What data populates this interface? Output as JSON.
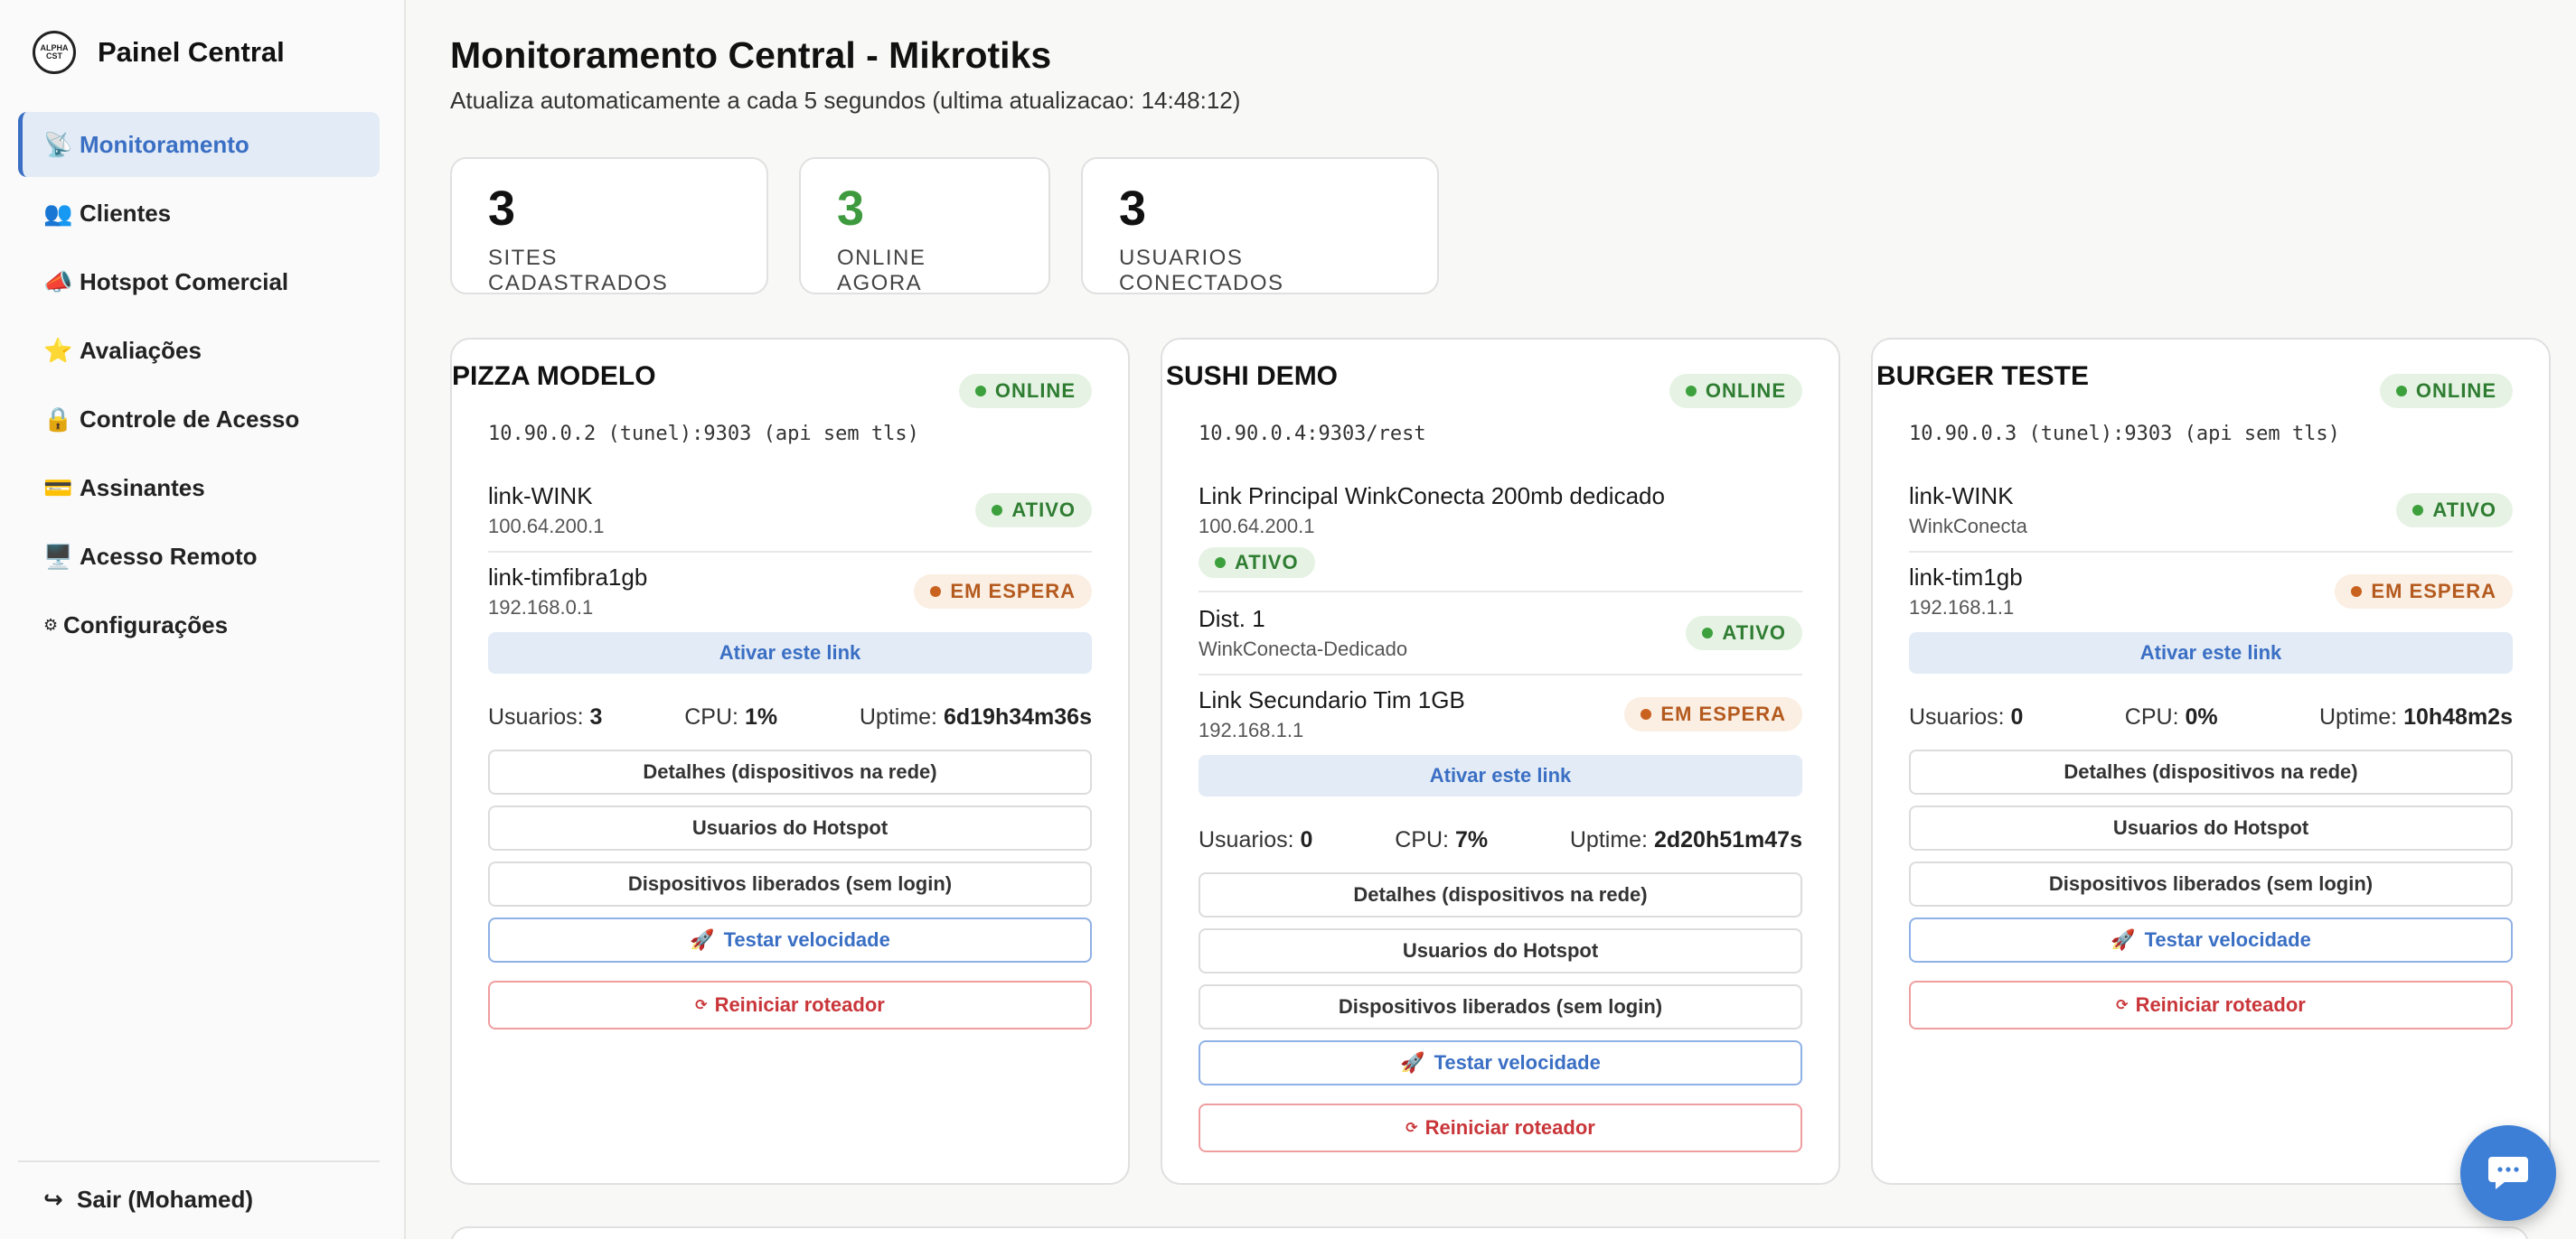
{
  "sidebar": {
    "brand_title": "Painel Central",
    "logo_text": "ALPHA CST",
    "items": [
      {
        "icon": "📡",
        "label": "Monitoramento"
      },
      {
        "icon": "👥",
        "label": "Clientes"
      },
      {
        "icon": "📣",
        "label": "Hotspot Comercial"
      },
      {
        "icon": "⭐",
        "label": "Avaliações"
      },
      {
        "icon": "🔒",
        "label": "Controle de Acesso"
      },
      {
        "icon": "💳",
        "label": "Assinantes"
      },
      {
        "icon": "🖥️",
        "label": "Acesso Remoto"
      },
      {
        "icon": "⚙",
        "label": "Configurações"
      }
    ],
    "logout_icon": "↪",
    "logout_label": "Sair (Mohamed)"
  },
  "header": {
    "title": "Monitoramento Central - Mikrotiks",
    "subtitle": "Atualiza automaticamente a cada 5 segundos (ultima atualizacao: 14:48:12)"
  },
  "stats": [
    {
      "value": "3",
      "label": "SITES CADASTRADOS"
    },
    {
      "value": "3",
      "label": "ONLINE AGORA"
    },
    {
      "value": "3",
      "label": "USUARIOS CONECTADOS"
    }
  ],
  "labels": {
    "users": "Usuarios:",
    "cpu": "CPU:",
    "uptime": "Uptime:",
    "activate": "Ativar este link",
    "details": "Detalhes (dispositivos na rede)",
    "hotspot_users": "Usuarios do Hotspot",
    "released": "Dispositivos liberados (sem login)",
    "speed_icon": "🚀",
    "speed": "Testar velocidade",
    "reboot_icon": "⟳",
    "reboot": "Reiniciar roteador"
  },
  "sites": [
    {
      "name": "PIZZA MODELO",
      "status": "ONLINE",
      "host": "10.90.0.2 (tunel):9303 (api sem tls)",
      "links": [
        {
          "name": "link-WINK",
          "sub": "100.64.200.1",
          "status": "ATIVO"
        },
        {
          "name": "link-timfibra1gb",
          "sub": "192.168.0.1",
          "status": "EM ESPERA"
        }
      ],
      "users": "3",
      "cpu": "1%",
      "uptime": "6d19h34m36s"
    },
    {
      "name": "SUSHI DEMO",
      "status": "ONLINE",
      "host": "10.90.0.4:9303/rest",
      "links": [
        {
          "name": "Link Principal WinkConecta 200mb dedicado",
          "sub": "100.64.200.1",
          "status": "ATIVO"
        },
        {
          "name": "Dist. 1",
          "sub": "WinkConecta-Dedicado",
          "status": "ATIVO"
        },
        {
          "name": "Link Secundario Tim 1GB",
          "sub": "192.168.1.1",
          "status": "EM ESPERA"
        }
      ],
      "users": "0",
      "cpu": "7%",
      "uptime": "2d20h51m47s"
    },
    {
      "name": "BURGER TESTE",
      "status": "ONLINE",
      "host": "10.90.0.3 (tunel):9303 (api sem tls)",
      "links": [
        {
          "name": "link-WINK",
          "sub": "WinkConecta",
          "status": "ATIVO"
        },
        {
          "name": "link-tim1gb",
          "sub": "192.168.1.1",
          "status": "EM ESPERA"
        }
      ],
      "users": "0",
      "cpu": "0%",
      "uptime": "10h48m2s"
    }
  ],
  "colors": {
    "accent": "#3a6fc4",
    "online_green": "#3ca03c",
    "waiting_orange": "#c9621f",
    "reboot_red": "#c9363a",
    "chat_button": "#3d7fd6"
  }
}
